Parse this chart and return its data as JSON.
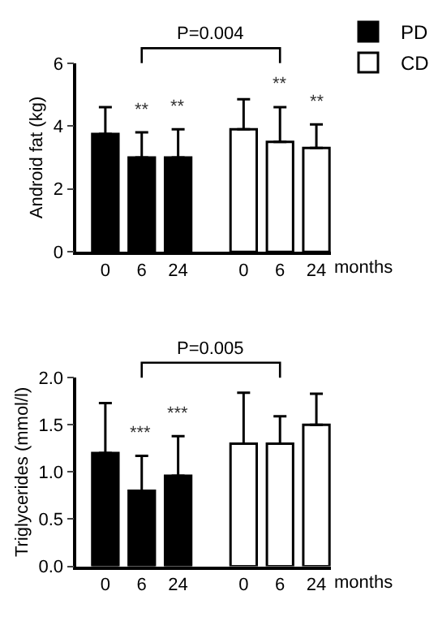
{
  "chart_data": [
    {
      "type": "bar",
      "ylabel": "Android fat (kg)",
      "xlabel": "months",
      "categories": [
        "0",
        "6",
        "24",
        "0",
        "6",
        "24"
      ],
      "series": [
        {
          "name": "PD",
          "color": "#000000",
          "values": [
            3.75,
            3.0,
            3.0,
            null,
            null,
            null
          ],
          "errors": [
            [
              3.75,
              4.6
            ],
            [
              3.0,
              3.8
            ],
            [
              3.0,
              3.9
            ],
            null,
            null,
            null
          ]
        },
        {
          "name": "CD",
          "color": "#ffffff",
          "values": [
            null,
            null,
            null,
            3.9,
            3.5,
            3.3
          ],
          "errors": [
            null,
            null,
            null,
            [
              3.9,
              4.85
            ],
            [
              3.5,
              4.6
            ],
            [
              3.3,
              4.05
            ]
          ]
        }
      ],
      "ylim": [
        0,
        6
      ],
      "yticks": [
        0,
        2,
        4,
        6
      ],
      "legend": "top right",
      "annotations": [
        "P=0.004",
        "**",
        "**",
        "**",
        "**"
      ]
    },
    {
      "type": "bar",
      "ylabel": "Triglycerides (mmol/l)",
      "xlabel": "months",
      "categories": [
        "0",
        "6",
        "24",
        "0",
        "6",
        "24"
      ],
      "series": [
        {
          "color": "#000000",
          "values": [
            1.2,
            0.8,
            0.96,
            null,
            null,
            null
          ],
          "errors": [
            [
              1.2,
              1.73
            ],
            [
              0.8,
              1.17
            ],
            [
              0.96,
              1.38
            ],
            null,
            null,
            null
          ]
        },
        {
          "color": "#ffffff",
          "values": [
            null,
            null,
            null,
            1.3,
            1.3,
            1.5
          ],
          "errors": [
            null,
            null,
            null,
            [
              1.3,
              1.84
            ],
            [
              1.3,
              1.59
            ],
            [
              1.5,
              1.83
            ]
          ]
        }
      ],
      "ylim": [
        0,
        2
      ],
      "yticks": [
        {
          "value": 0,
          "label": "0.0"
        },
        {
          "value": 0.5,
          "label": "0.5"
        },
        {
          "value": 1,
          "label": "1.0"
        },
        {
          "value": 1.5,
          "label": "1.5"
        },
        {
          "value": 2,
          "label": "2.0"
        }
      ],
      "legend": false,
      "annotations": [
        "P=0.005",
        "***",
        "***"
      ]
    }
  ]
}
